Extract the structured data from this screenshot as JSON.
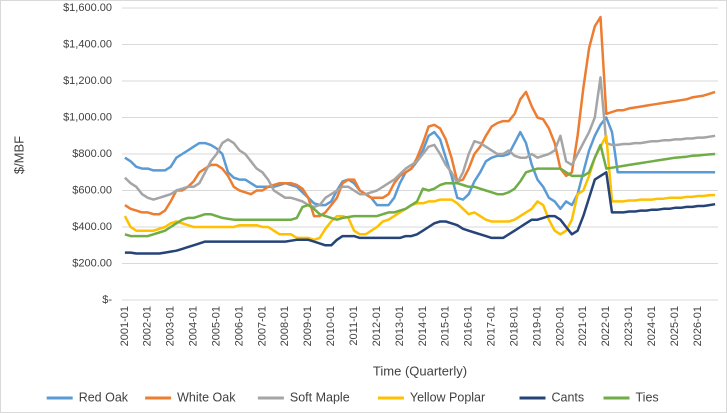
{
  "chart_data": {
    "type": "line",
    "y_label": "$/MBF",
    "x_label": "Time (Quarterly)",
    "grid": true,
    "legend": "bottom",
    "ylim": [
      0,
      1600
    ],
    "yticks": [
      {
        "value": 0,
        "label": "$-"
      },
      {
        "value": 200,
        "label": "$200.00"
      },
      {
        "value": 400,
        "label": "$400.00"
      },
      {
        "value": 600,
        "label": "$600.00"
      },
      {
        "value": 800,
        "label": "$800.00"
      },
      {
        "value": 1000,
        "label": "$1,000.00"
      },
      {
        "value": 1200,
        "label": "$1,200.00"
      },
      {
        "value": 1400,
        "label": "$1,400.00"
      },
      {
        "value": 1600,
        "label": "$1,600.00"
      }
    ],
    "categories": [
      "2001-01",
      null,
      null,
      null,
      "2002-01",
      null,
      null,
      null,
      "2003-01",
      null,
      null,
      null,
      "2004-01",
      null,
      null,
      null,
      "2005-01",
      null,
      null,
      null,
      "2006-01",
      null,
      null,
      null,
      "2007-01",
      null,
      null,
      null,
      "2008-01",
      null,
      null,
      null,
      "2009-01",
      null,
      null,
      null,
      "2010-01",
      null,
      null,
      null,
      "2011-01",
      null,
      null,
      null,
      "2012-01",
      null,
      null,
      null,
      "2013-01",
      null,
      null,
      null,
      "2014-01",
      null,
      null,
      null,
      "2015-01",
      null,
      null,
      null,
      "2016-01",
      null,
      null,
      null,
      "2017-01",
      null,
      null,
      null,
      "2018-01",
      null,
      null,
      null,
      "2019-01",
      null,
      null,
      null,
      "2020-01",
      null,
      null,
      null,
      "2021-01",
      null,
      null,
      null,
      "2022-01",
      null,
      null,
      null,
      "2023-01",
      null,
      null,
      null,
      "2024-01",
      null,
      null,
      null,
      "2025-01",
      null,
      null,
      null,
      "2026-01",
      null,
      null,
      null
    ],
    "series": [
      {
        "name": "Red Oak",
        "color": "#5b9bd5",
        "values": [
          780,
          760,
          730,
          720,
          720,
          710,
          710,
          710,
          730,
          780,
          800,
          820,
          840,
          860,
          860,
          850,
          830,
          800,
          700,
          670,
          660,
          660,
          640,
          620,
          620,
          620,
          620,
          630,
          640,
          630,
          620,
          590,
          560,
          530,
          520,
          520,
          540,
          600,
          650,
          660,
          640,
          600,
          580,
          560,
          520,
          520,
          520,
          560,
          640,
          700,
          720,
          760,
          820,
          900,
          920,
          880,
          780,
          680,
          560,
          550,
          580,
          650,
          700,
          760,
          780,
          790,
          790,
          800,
          860,
          920,
          860,
          740,
          660,
          620,
          560,
          540,
          500,
          540,
          520,
          580,
          700,
          820,
          900,
          960,
          1000,
          920,
          700,
          700,
          700,
          700,
          700,
          700,
          700,
          700,
          700,
          700,
          700,
          700,
          700,
          700,
          700,
          700,
          700,
          700
        ]
      },
      {
        "name": "White Oak",
        "color": "#ed7d31",
        "values": [
          520,
          500,
          490,
          480,
          480,
          470,
          470,
          490,
          540,
          600,
          600,
          620,
          650,
          700,
          720,
          740,
          740,
          720,
          680,
          620,
          600,
          590,
          580,
          600,
          600,
          620,
          630,
          640,
          640,
          640,
          630,
          610,
          560,
          460,
          460,
          480,
          520,
          560,
          640,
          660,
          660,
          600,
          580,
          560,
          560,
          560,
          580,
          640,
          680,
          700,
          720,
          780,
          860,
          950,
          960,
          940,
          880,
          780,
          650,
          660,
          720,
          800,
          840,
          900,
          950,
          970,
          980,
          980,
          1020,
          1100,
          1140,
          1060,
          1000,
          990,
          940,
          860,
          720,
          680,
          700,
          900,
          1160,
          1380,
          1500,
          1550,
          1020,
          1030,
          1040,
          1040,
          1050,
          1055,
          1060,
          1065,
          1070,
          1075,
          1080,
          1085,
          1090,
          1095,
          1100,
          1110,
          1115,
          1120,
          1130,
          1140
        ]
      },
      {
        "name": "Soft Maple",
        "color": "#a5a5a5",
        "values": [
          670,
          640,
          620,
          580,
          560,
          550,
          560,
          570,
          580,
          600,
          610,
          620,
          620,
          640,
          700,
          760,
          800,
          860,
          880,
          860,
          820,
          800,
          760,
          720,
          700,
          660,
          600,
          580,
          560,
          560,
          550,
          540,
          520,
          510,
          520,
          560,
          580,
          600,
          620,
          620,
          600,
          580,
          580,
          590,
          600,
          620,
          640,
          660,
          690,
          720,
          740,
          760,
          800,
          840,
          850,
          800,
          740,
          700,
          640,
          700,
          800,
          870,
          860,
          840,
          820,
          800,
          800,
          820,
          790,
          780,
          780,
          800,
          780,
          790,
          800,
          820,
          900,
          760,
          740,
          800,
          860,
          920,
          1000,
          1220,
          860,
          850,
          850,
          855,
          855,
          860,
          860,
          865,
          870,
          870,
          875,
          875,
          880,
          880,
          885,
          885,
          890,
          890,
          895,
          900
        ]
      },
      {
        "name": "Yellow Poplar",
        "color": "#ffc000",
        "values": [
          460,
          400,
          380,
          380,
          380,
          380,
          390,
          400,
          420,
          430,
          420,
          410,
          400,
          400,
          400,
          400,
          400,
          400,
          400,
          400,
          410,
          410,
          410,
          410,
          400,
          400,
          380,
          360,
          360,
          360,
          340,
          340,
          340,
          330,
          340,
          390,
          430,
          460,
          460,
          450,
          380,
          360,
          360,
          380,
          400,
          430,
          440,
          460,
          480,
          500,
          520,
          530,
          530,
          540,
          540,
          550,
          550,
          550,
          530,
          500,
          470,
          480,
          460,
          440,
          430,
          430,
          430,
          430,
          440,
          460,
          480,
          500,
          540,
          520,
          440,
          380,
          360,
          380,
          440,
          580,
          600,
          680,
          780,
          840,
          900,
          540,
          540,
          540,
          545,
          545,
          550,
          550,
          550,
          555,
          555,
          560,
          560,
          560,
          565,
          565,
          570,
          570,
          575,
          575
        ]
      },
      {
        "name": "Cants",
        "color": "#264478",
        "values": [
          260,
          260,
          255,
          255,
          255,
          255,
          255,
          260,
          265,
          270,
          280,
          290,
          300,
          310,
          320,
          320,
          320,
          320,
          320,
          320,
          320,
          320,
          320,
          320,
          320,
          320,
          320,
          320,
          320,
          325,
          330,
          330,
          330,
          320,
          310,
          300,
          300,
          330,
          350,
          350,
          350,
          340,
          340,
          340,
          340,
          340,
          340,
          340,
          340,
          350,
          350,
          360,
          380,
          400,
          420,
          430,
          430,
          420,
          410,
          390,
          380,
          370,
          360,
          350,
          340,
          340,
          340,
          360,
          380,
          400,
          420,
          440,
          440,
          450,
          460,
          460,
          440,
          400,
          360,
          380,
          460,
          560,
          660,
          680,
          700,
          480,
          480,
          480,
          485,
          485,
          490,
          490,
          495,
          495,
          500,
          500,
          505,
          505,
          510,
          510,
          515,
          515,
          520,
          525
        ]
      },
      {
        "name": "Ties",
        "color": "#70ad47",
        "values": [
          360,
          350,
          350,
          350,
          350,
          360,
          370,
          380,
          400,
          420,
          440,
          450,
          450,
          460,
          470,
          470,
          460,
          450,
          445,
          440,
          440,
          440,
          440,
          440,
          440,
          440,
          440,
          440,
          440,
          440,
          450,
          510,
          520,
          500,
          470,
          460,
          450,
          440,
          450,
          455,
          460,
          460,
          460,
          460,
          460,
          470,
          480,
          480,
          490,
          500,
          520,
          540,
          610,
          600,
          610,
          630,
          640,
          640,
          640,
          630,
          620,
          620,
          610,
          600,
          590,
          580,
          580,
          590,
          610,
          650,
          700,
          710,
          720,
          720,
          720,
          720,
          720,
          700,
          680,
          680,
          680,
          700,
          780,
          850,
          720,
          725,
          730,
          735,
          740,
          745,
          750,
          755,
          760,
          765,
          770,
          775,
          780,
          782,
          785,
          790,
          792,
          795,
          798,
          800
        ]
      }
    ]
  }
}
